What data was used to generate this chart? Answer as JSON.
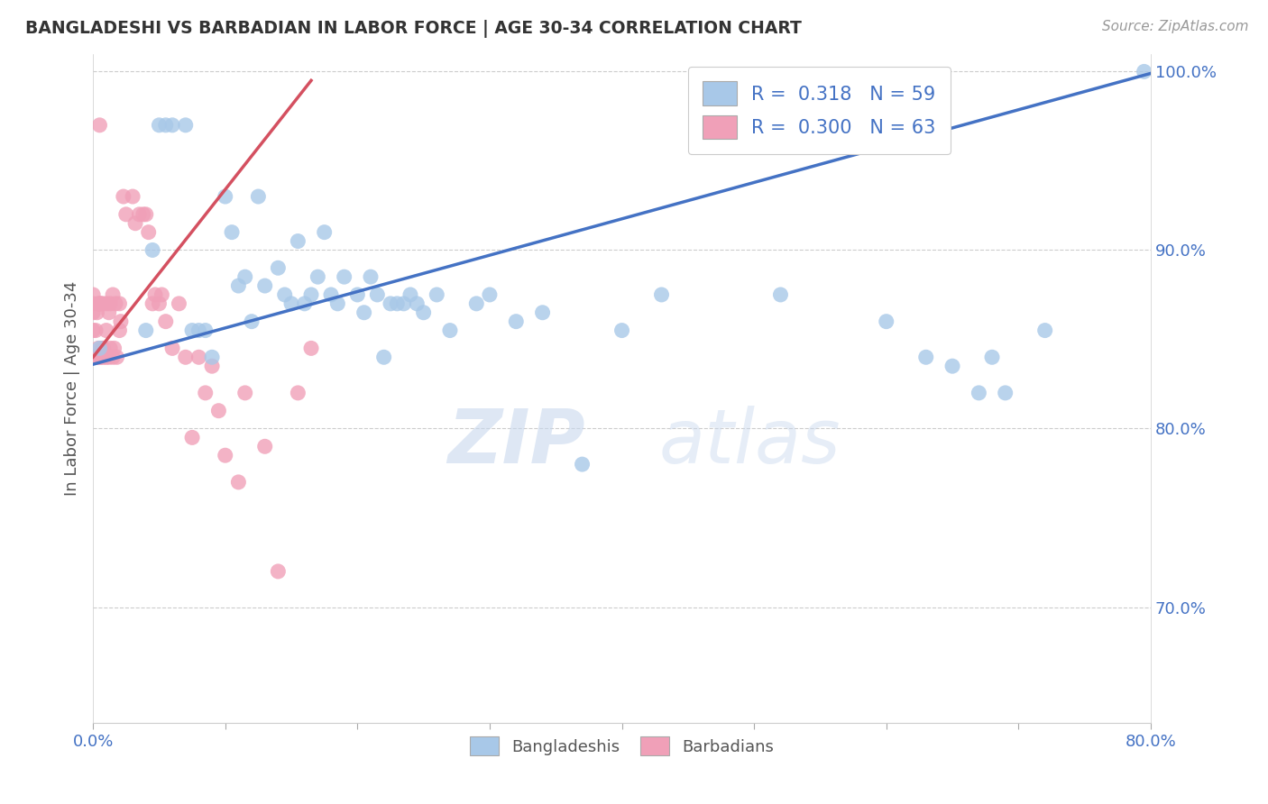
{
  "title": "BANGLADESHI VS BARBADIAN IN LABOR FORCE | AGE 30-34 CORRELATION CHART",
  "source": "Source: ZipAtlas.com",
  "ylabel": "In Labor Force | Age 30-34",
  "xlim": [
    0.0,
    0.8
  ],
  "ylim": [
    0.635,
    1.01
  ],
  "xticks": [
    0.0,
    0.1,
    0.2,
    0.3,
    0.4,
    0.5,
    0.6,
    0.7,
    0.8
  ],
  "xticklabels": [
    "0.0%",
    "",
    "",
    "",
    "",
    "",
    "",
    "",
    "80.0%"
  ],
  "ytick_positions": [
    0.7,
    0.8,
    0.9,
    1.0
  ],
  "ytick_labels": [
    "70.0%",
    "80.0%",
    "90.0%",
    "100.0%"
  ],
  "blue_color": "#a8c8e8",
  "pink_color": "#f0a0b8",
  "blue_line_color": "#4472c4",
  "pink_line_color": "#d45060",
  "legend_R_blue": "0.318",
  "legend_N_blue": "59",
  "legend_R_pink": "0.300",
  "legend_N_pink": "63",
  "watermark_zip": "ZIP",
  "watermark_atlas": "atlas",
  "blue_scatter_x": [
    0.005,
    0.04,
    0.045,
    0.05,
    0.055,
    0.06,
    0.07,
    0.075,
    0.08,
    0.085,
    0.09,
    0.1,
    0.105,
    0.11,
    0.115,
    0.12,
    0.125,
    0.13,
    0.14,
    0.145,
    0.15,
    0.155,
    0.16,
    0.165,
    0.17,
    0.175,
    0.18,
    0.185,
    0.19,
    0.2,
    0.205,
    0.21,
    0.215,
    0.22,
    0.225,
    0.23,
    0.235,
    0.24,
    0.245,
    0.25,
    0.26,
    0.27,
    0.29,
    0.3,
    0.32,
    0.34,
    0.37,
    0.4,
    0.43,
    0.52,
    0.57,
    0.6,
    0.63,
    0.65,
    0.67,
    0.68,
    0.69,
    0.72,
    0.795
  ],
  "blue_scatter_y": [
    0.845,
    0.855,
    0.9,
    0.97,
    0.97,
    0.97,
    0.97,
    0.855,
    0.855,
    0.855,
    0.84,
    0.93,
    0.91,
    0.88,
    0.885,
    0.86,
    0.93,
    0.88,
    0.89,
    0.875,
    0.87,
    0.905,
    0.87,
    0.875,
    0.885,
    0.91,
    0.875,
    0.87,
    0.885,
    0.875,
    0.865,
    0.885,
    0.875,
    0.84,
    0.87,
    0.87,
    0.87,
    0.875,
    0.87,
    0.865,
    0.875,
    0.855,
    0.87,
    0.875,
    0.86,
    0.865,
    0.78,
    0.855,
    0.875,
    0.875,
    0.96,
    0.86,
    0.84,
    0.835,
    0.82,
    0.84,
    0.82,
    0.855,
    1.0
  ],
  "pink_scatter_x": [
    0.0,
    0.0,
    0.0,
    0.0,
    0.0,
    0.002,
    0.002,
    0.003,
    0.003,
    0.004,
    0.004,
    0.005,
    0.005,
    0.006,
    0.006,
    0.007,
    0.007,
    0.008,
    0.008,
    0.01,
    0.01,
    0.01,
    0.012,
    0.012,
    0.013,
    0.013,
    0.015,
    0.015,
    0.016,
    0.017,
    0.018,
    0.02,
    0.02,
    0.021,
    0.023,
    0.025,
    0.03,
    0.032,
    0.035,
    0.038,
    0.04,
    0.042,
    0.045,
    0.047,
    0.05,
    0.052,
    0.055,
    0.06,
    0.065,
    0.07,
    0.075,
    0.08,
    0.085,
    0.09,
    0.095,
    0.1,
    0.11,
    0.115,
    0.13,
    0.14,
    0.155,
    0.165,
    0.005
  ],
  "pink_scatter_y": [
    0.84,
    0.855,
    0.865,
    0.87,
    0.875,
    0.84,
    0.855,
    0.84,
    0.865,
    0.845,
    0.87,
    0.84,
    0.87,
    0.84,
    0.87,
    0.845,
    0.87,
    0.84,
    0.845,
    0.84,
    0.855,
    0.87,
    0.84,
    0.865,
    0.845,
    0.87,
    0.84,
    0.875,
    0.845,
    0.87,
    0.84,
    0.855,
    0.87,
    0.86,
    0.93,
    0.92,
    0.93,
    0.915,
    0.92,
    0.92,
    0.92,
    0.91,
    0.87,
    0.875,
    0.87,
    0.875,
    0.86,
    0.845,
    0.87,
    0.84,
    0.795,
    0.84,
    0.82,
    0.835,
    0.81,
    0.785,
    0.77,
    0.82,
    0.79,
    0.72,
    0.82,
    0.845,
    0.97
  ],
  "blue_trendline_x": [
    0.0,
    0.8
  ],
  "blue_trendline_y": [
    0.836,
    0.999
  ],
  "pink_trendline_x": [
    0.0,
    0.165
  ],
  "pink_trendline_y": [
    0.84,
    0.995
  ]
}
